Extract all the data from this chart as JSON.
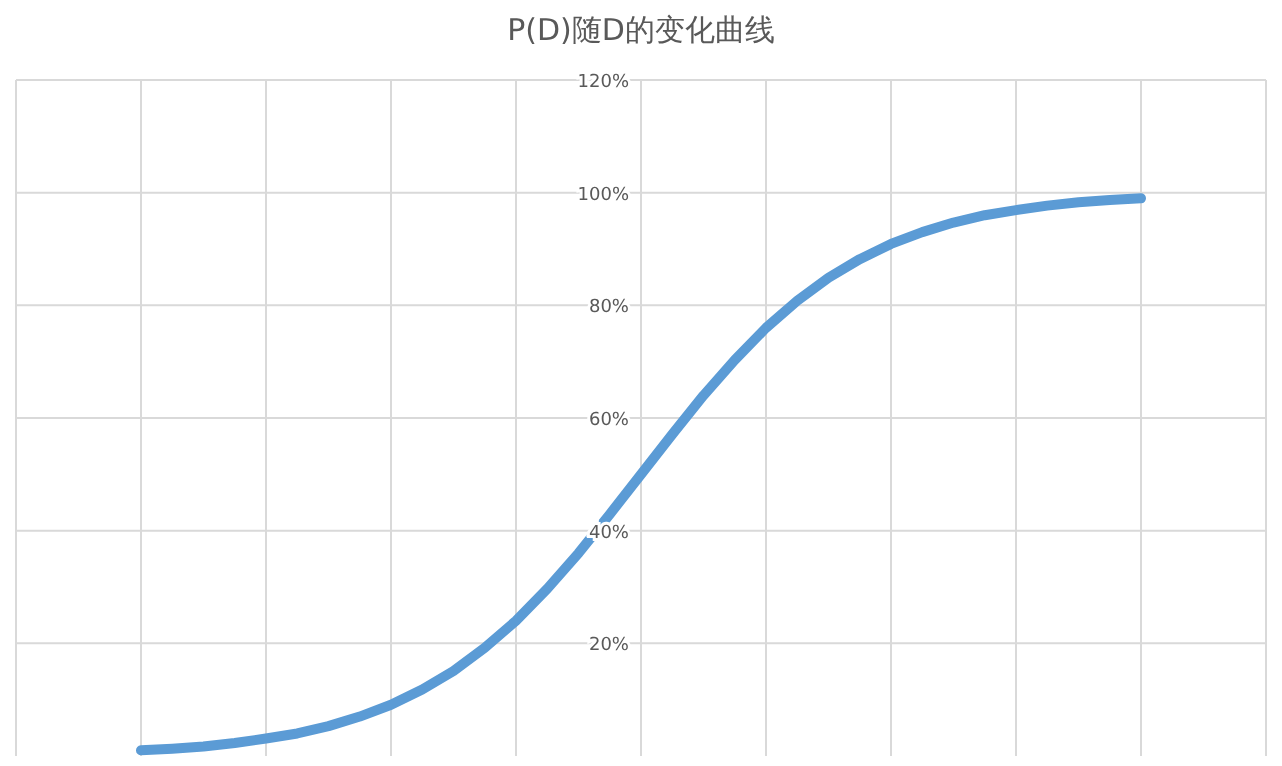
{
  "chart_data": {
    "type": "line",
    "title": "P(D)随D的变化曲线",
    "categories": [
      null,
      null,
      null,
      null,
      null,
      null,
      null,
      null,
      null,
      null,
      null,
      null,
      null,
      null,
      null,
      null,
      null,
      null,
      null,
      null,
      null,
      null,
      null,
      null,
      null,
      null,
      null,
      null,
      null,
      null,
      null,
      null,
      null
    ],
    "series": [
      {
        "color": "#5b9bd5",
        "values": [
          1.0,
          1.3,
          1.7,
          2.3,
          3.1,
          4.0,
          5.3,
          7.0,
          9.1,
          11.8,
          15.1,
          19.2,
          24.0,
          29.7,
          36.0,
          42.9,
          50.0,
          57.1,
          64.0,
          70.3,
          76.0,
          80.8,
          84.9,
          88.2,
          90.9,
          93.0,
          94.7,
          96.0,
          96.9,
          97.7,
          98.3,
          98.7,
          99.0
        ]
      }
    ],
    "ylim": [
      0,
      120
    ],
    "yticks": [
      {
        "value": 20,
        "label": "20%"
      },
      {
        "value": 40,
        "label": "40%"
      },
      {
        "value": 60,
        "label": "60%"
      },
      {
        "value": 80,
        "label": "80%"
      },
      {
        "value": 100,
        "label": "100%"
      },
      {
        "value": 120,
        "label": "120%"
      }
    ],
    "grid": true
  }
}
